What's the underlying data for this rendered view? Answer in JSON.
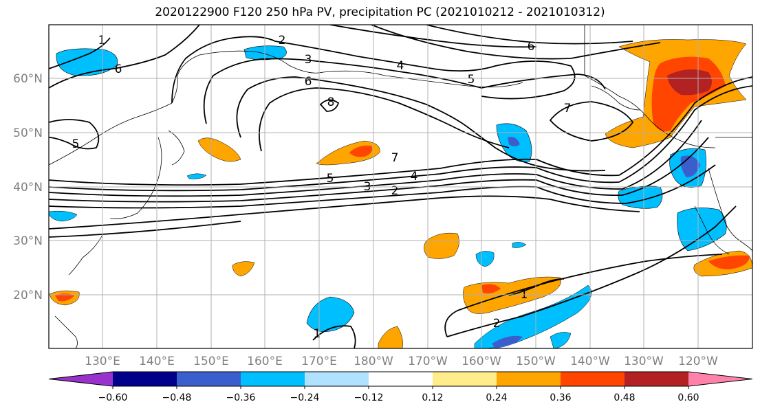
{
  "title": "2020122900 F120 250 hPa PV, precipitation PC (2021010212 - 2021010312)",
  "lat_labels": [
    "60°N",
    "50°N",
    "40°N",
    "30°N",
    "20°N"
  ],
  "lon_labels": [
    "130°E",
    "140°E",
    "150°E",
    "160°E",
    "170°E",
    "180°W",
    "170°W",
    "160°W",
    "150°W",
    "140°W",
    "130°W",
    "120°W"
  ],
  "colorbar": {
    "ticks": [
      "−0.60",
      "−0.48",
      "−0.36",
      "−0.24",
      "−0.12",
      "0.12",
      "0.24",
      "0.36",
      "0.48",
      "0.60"
    ],
    "colors": [
      "#9932cc",
      "#00008b",
      "#3a5fcd",
      "#00bfff",
      "#b0e2ff",
      "#ffffff",
      "#ffec8b",
      "#ffa500",
      "#ff4500",
      "#b22222",
      "#ff82ab"
    ]
  },
  "contour_labels": [
    "1",
    "6",
    "2",
    "3",
    "4",
    "6",
    "5",
    "6",
    "8",
    "7",
    "5",
    "7",
    "5",
    "4",
    "3",
    "2",
    "1",
    "2",
    "1"
  ],
  "colors": {
    "grid": "#b0b0b0",
    "axis_label": "#808080",
    "contour": "#000000"
  }
}
